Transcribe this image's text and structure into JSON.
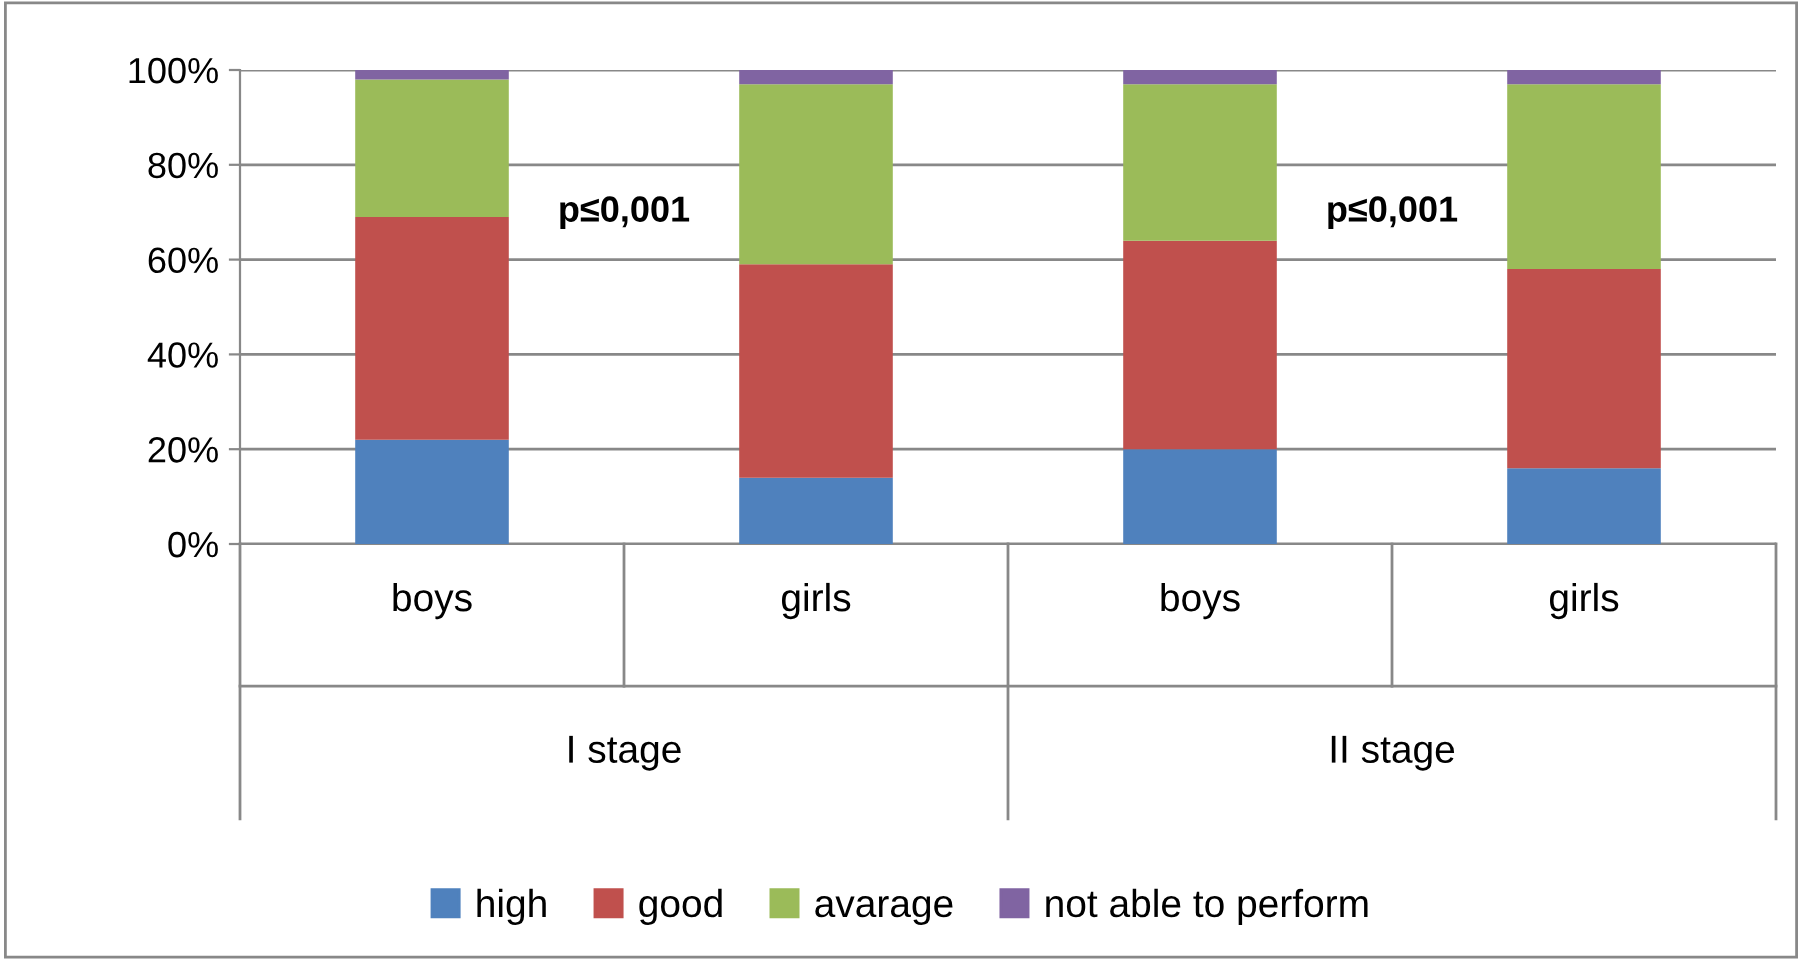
{
  "chart_data": {
    "type": "bar",
    "stacked": true,
    "categories": [
      "boys",
      "girls",
      "boys",
      "girls"
    ],
    "series": [
      {
        "name": "high",
        "color": "#4f81bd",
        "values": [
          22,
          14,
          20,
          16
        ]
      },
      {
        "name": "good",
        "color": "#c0504d",
        "values": [
          47,
          45,
          44,
          42
        ]
      },
      {
        "name": "avarage",
        "color": "#9bbb59",
        "values": [
          29,
          38,
          33,
          39
        ]
      },
      {
        "name": "not able to perform",
        "color": "#8064a2",
        "values": [
          2,
          3,
          3,
          3
        ]
      }
    ],
    "ylim": [
      0,
      100
    ],
    "yticks": [
      {
        "value": 0,
        "label": "0%"
      },
      {
        "value": 20,
        "label": "20%"
      },
      {
        "value": 40,
        "label": "40%"
      },
      {
        "value": 60,
        "label": "60%"
      },
      {
        "value": 80,
        "label": "80%"
      },
      {
        "value": 100,
        "label": "100%"
      }
    ],
    "grid": "y",
    "legend": "bottom",
    "annotations": [
      "p≤0,001",
      "p≤0,001",
      "I stage",
      "II stage"
    ]
  }
}
